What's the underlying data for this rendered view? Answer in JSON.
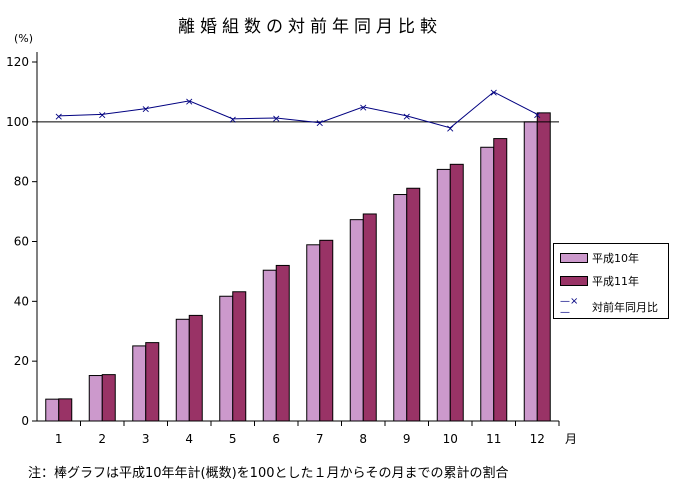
{
  "chart_data": {
    "type": "bar",
    "title": "離婚組数の対前年同月比較",
    "ylabel": "(%)",
    "xlabel": "月",
    "ylim": [
      0,
      120
    ],
    "yticks": [
      0,
      20,
      40,
      60,
      80,
      100,
      120
    ],
    "categories": [
      "1",
      "2",
      "3",
      "4",
      "5",
      "6",
      "7",
      "8",
      "9",
      "10",
      "11",
      "12"
    ],
    "series": [
      {
        "name": "平成10年",
        "type": "bar",
        "color": "#cc99cc",
        "values": [
          7.3,
          15.2,
          25.1,
          34,
          41.7,
          50.4,
          58.9,
          67.3,
          75.7,
          84.1,
          91.5,
          100
        ]
      },
      {
        "name": "平成11年",
        "type": "bar",
        "color": "#993366",
        "values": [
          7.4,
          15.5,
          26.2,
          35.3,
          43.2,
          52,
          60.4,
          69.2,
          77.8,
          85.8,
          94.4,
          103
        ]
      },
      {
        "name": "対前年同月比",
        "type": "line",
        "color": "#000080",
        "marker": "x",
        "values": [
          102,
          102.5,
          104.4,
          107,
          101,
          101.3,
          99.7,
          105,
          102,
          98,
          110,
          102.5
        ]
      }
    ],
    "reference_line": 100,
    "legend": "right",
    "grid": false,
    "note": "注：棒グラフは平成10年年計(概数)を100とした１月からその月までの累計の割合"
  }
}
